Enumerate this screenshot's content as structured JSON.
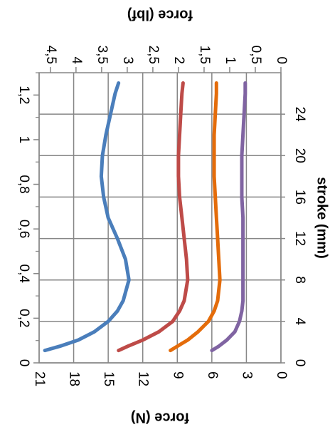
{
  "chart_data": {
    "type": "line",
    "orientation": "rotated-90-clockwise",
    "x_axis": {
      "label": "stroke (mm)",
      "range": [
        0,
        28
      ],
      "ticks": [
        "0",
        "4",
        "8",
        "12",
        "16",
        "20",
        "24"
      ]
    },
    "x_axis_secondary": {
      "label": "",
      "range": [
        0,
        1.3
      ],
      "ticks": [
        "0",
        "0,2",
        "0,4",
        "0,6",
        "0,8",
        "1",
        "1,2"
      ]
    },
    "y_axis": {
      "label": "force (N)",
      "range": [
        0,
        21
      ],
      "ticks": [
        "0",
        "3",
        "6",
        "9",
        "12",
        "15",
        "18",
        "21"
      ]
    },
    "y_axis_secondary": {
      "label": "force (lbf)",
      "range": [
        0,
        4.72
      ],
      "ticks": [
        "0",
        "0,5",
        "1",
        "1,5",
        "2",
        "2,5",
        "3",
        "3,5",
        "4",
        "4,5"
      ]
    },
    "grid": true,
    "legend": "none",
    "series": [
      {
        "color": "#4a7ebb",
        "x": [
          1.2,
          1.6,
          2.2,
          3,
          4,
          5,
          6,
          8,
          10,
          12,
          14,
          16,
          18,
          20,
          22,
          24,
          26,
          27
        ],
        "y": [
          20.5,
          19.2,
          17.6,
          16.2,
          15.0,
          14.2,
          13.7,
          13.2,
          13.5,
          14.2,
          15.0,
          15.4,
          15.6,
          15.5,
          15.2,
          14.8,
          14.4,
          14.1
        ]
      },
      {
        "color": "#be4b48",
        "x": [
          1.2,
          1.6,
          2.2,
          3,
          4,
          5,
          6,
          8,
          10,
          12,
          14,
          16,
          18,
          20,
          22,
          24,
          26,
          27
        ],
        "y": [
          14.1,
          13.3,
          12.0,
          10.6,
          9.4,
          8.8,
          8.4,
          8.1,
          8.2,
          8.4,
          8.6,
          8.8,
          8.9,
          8.9,
          8.8,
          8.7,
          8.6,
          8.5
        ]
      },
      {
        "color": "#e46c0a",
        "x": [
          1.2,
          1.6,
          2.2,
          3,
          4,
          5,
          6,
          8,
          10,
          12,
          14,
          16,
          18,
          20,
          22,
          24,
          26,
          27
        ],
        "y": [
          9.6,
          9.0,
          8.1,
          7.2,
          6.3,
          5.8,
          5.5,
          5.3,
          5.4,
          5.5,
          5.6,
          5.7,
          5.8,
          5.8,
          5.8,
          5.7,
          5.6,
          5.6
        ]
      },
      {
        "color": "#8064a2",
        "x": [
          1.2,
          1.6,
          2.2,
          3,
          4,
          5,
          6,
          8,
          10,
          12,
          14,
          16,
          18,
          20,
          22,
          24,
          26,
          27
        ],
        "y": [
          6.0,
          5.4,
          4.7,
          4.0,
          3.6,
          3.4,
          3.3,
          3.3,
          3.3,
          3.3,
          3.3,
          3.4,
          3.4,
          3.4,
          3.3,
          3.2,
          3.1,
          3.1
        ]
      }
    ]
  }
}
